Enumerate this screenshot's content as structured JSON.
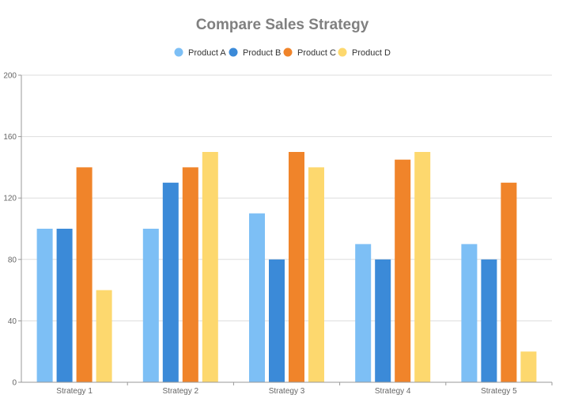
{
  "chart_data": {
    "type": "bar",
    "title": "Compare Sales Strategy",
    "xlabel": "",
    "ylabel": "",
    "categories": [
      "Strategy 1",
      "Strategy 2",
      "Strategy 3",
      "Strategy 4",
      "Strategy 5"
    ],
    "series": [
      {
        "name": "Product A",
        "color": "#7dbff5",
        "values": [
          100,
          100,
          110,
          90,
          90
        ]
      },
      {
        "name": "Product B",
        "color": "#3b8ad8",
        "values": [
          100,
          130,
          80,
          80,
          80
        ]
      },
      {
        "name": "Product C",
        "color": "#f0842a",
        "values": [
          140,
          140,
          150,
          145,
          130
        ]
      },
      {
        "name": "Product D",
        "color": "#fdd86e",
        "values": [
          60,
          150,
          140,
          150,
          20
        ]
      }
    ],
    "ylim": [
      0,
      200
    ],
    "yticks": [
      0,
      40,
      80,
      120,
      160,
      200
    ],
    "grid": true,
    "legend_position": "top-center"
  }
}
